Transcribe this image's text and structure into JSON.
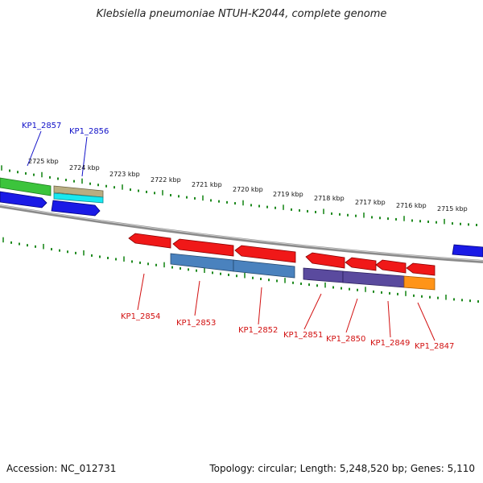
{
  "title": "Klebsiella pneumoniae NTUH-K2044, complete genome",
  "footer": {
    "accession": "Accession: NC_012731",
    "stats": "Topology: circular; Length: 5,248,520 bp; Genes: 5,110"
  },
  "colors": {
    "backbone": "#8a8a8a",
    "tick": "#1f8a1f",
    "label_blue": "#1010c8",
    "label_red": "#d21010"
  },
  "ticks": [
    "2725 kbp",
    "2724 kbp",
    "2723 kbp",
    "2722 kbp",
    "2721 kbp",
    "2720 kbp",
    "2719 kbp",
    "2718 kbp",
    "2717 kbp",
    "2716 kbp",
    "2715 kbp"
  ],
  "upper_labels": [
    "KP1_2857",
    "KP1_2856"
  ],
  "lower_labels": [
    "KP1_2854",
    "KP1_2853",
    "KP1_2852",
    "KP1_2851",
    "KP1_2850",
    "KP1_2849",
    "KP1_2847"
  ]
}
